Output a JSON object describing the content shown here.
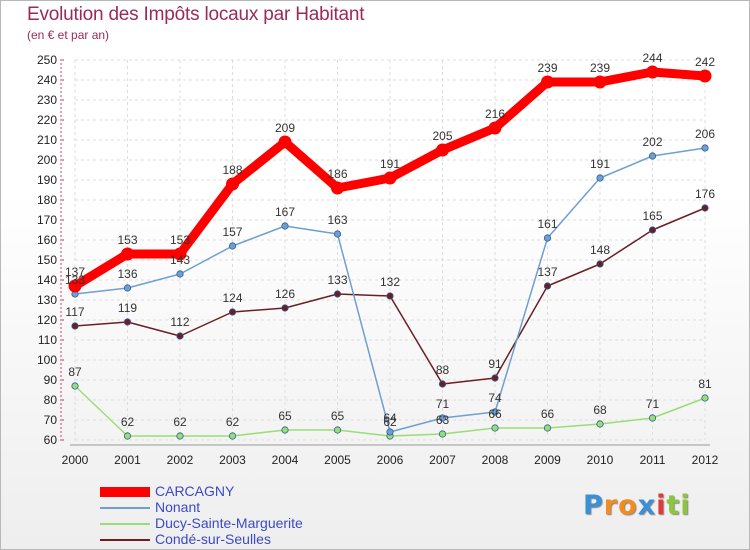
{
  "title": "Evolution des Impôts locaux par Habitant",
  "subtitle": "(en € et par an)",
  "chart_data": {
    "type": "line",
    "title": "Evolution des Impôts locaux par Habitant",
    "subtitle": "(en € et par an)",
    "x": [
      "2000",
      "2001",
      "2002",
      "2003",
      "2004",
      "2005",
      "2006",
      "2007",
      "2008",
      "2009",
      "2010",
      "2011",
      "2012"
    ],
    "yticks": [
      60,
      70,
      80,
      90,
      100,
      110,
      120,
      130,
      140,
      150,
      160,
      170,
      180,
      190,
      200,
      210,
      220,
      230,
      240,
      250
    ],
    "ylim": [
      60,
      250
    ],
    "grid": true,
    "legend_position": "bottom-left",
    "series": [
      {
        "name": "CARCAGNY",
        "color": "#ff0000",
        "values": [
          137,
          153,
          153,
          188,
          209,
          186,
          191,
          205,
          216,
          239,
          239,
          244,
          242
        ]
      },
      {
        "name": "Nonant",
        "color": "#6f9fd0",
        "values": [
          133,
          136,
          143,
          157,
          167,
          163,
          64,
          71,
          74,
          161,
          191,
          202,
          206
        ]
      },
      {
        "name": "Ducy-Sainte-Marguerite",
        "color": "#99dd77",
        "values": [
          87,
          62,
          62,
          62,
          65,
          65,
          62,
          63,
          66,
          66,
          68,
          71,
          81
        ]
      },
      {
        "name": "Condé-sur-Seulles",
        "color": "#6b1f24",
        "values": [
          117,
          119,
          112,
          124,
          126,
          133,
          132,
          88,
          91,
          137,
          148,
          165,
          176
        ]
      }
    ]
  },
  "logo": {
    "letters": [
      "P",
      "r",
      "o",
      "x",
      "i",
      "t",
      "i"
    ],
    "colors": [
      "#3b8fd6",
      "#f28c1e",
      "#f28c1e",
      "#3b8fd6",
      "#e23a3a",
      "#8cc63f",
      "#8cc63f"
    ]
  }
}
